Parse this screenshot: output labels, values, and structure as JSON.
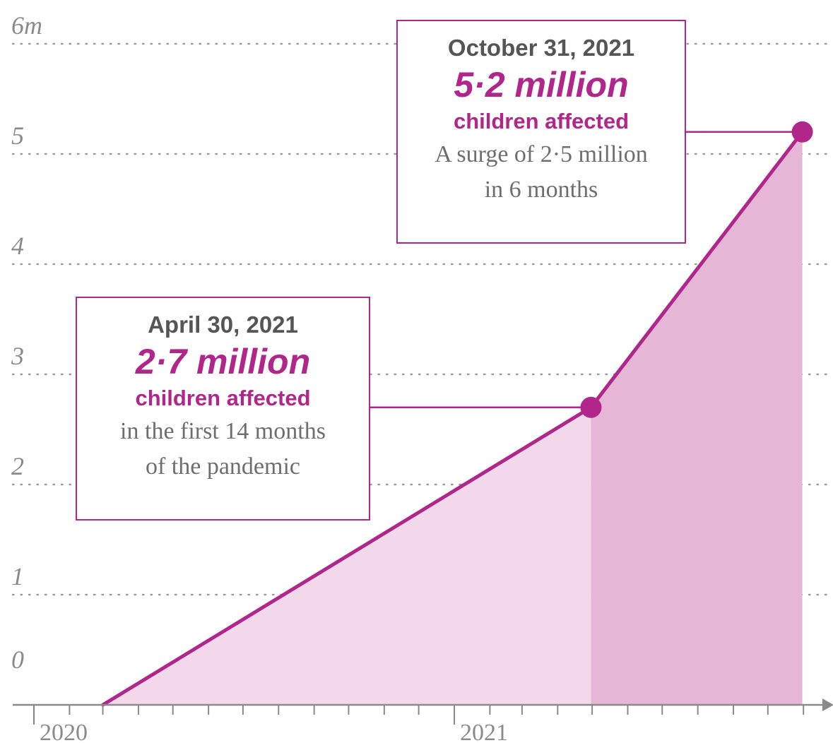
{
  "colors": {
    "accent": "#b0268a",
    "fill_light": "#f2d8ea",
    "fill_dark": "#e6b6d6",
    "grid": "#9a9a9a",
    "axis": "#8a8a8a"
  },
  "chart_data": {
    "type": "area",
    "y_tick_labels": [
      "6m",
      "5",
      "4",
      "3",
      "2",
      "1",
      "0"
    ],
    "y_ticks": [
      6,
      5,
      4,
      3,
      2,
      1,
      0
    ],
    "ylim": [
      0,
      6
    ],
    "x_tick_labels": [
      "2020",
      "2021"
    ],
    "x_ticks": [
      "2020-01-01",
      "2021-01-01"
    ],
    "xlim": [
      "2020-01-01",
      "2021-11-15"
    ],
    "grid": true,
    "series": [
      {
        "points": [
          {
            "x": "2020-03-01",
            "y": 0
          },
          {
            "x": "2021-04-30",
            "y": 2.7
          },
          {
            "x": "2021-10-31",
            "y": 5.2
          }
        ]
      }
    ],
    "annotations": [
      {
        "date": "April 30, 2021",
        "value": "2·7 million",
        "caption": "children affected",
        "note_lines": [
          "in the first 14 months",
          "of the pandemic"
        ]
      },
      {
        "date": "October 31, 2021",
        "value": "5·2 million",
        "caption": "children affected",
        "note_lines": [
          "A surge of 2·5 million",
          "in 6 months"
        ]
      }
    ]
  }
}
